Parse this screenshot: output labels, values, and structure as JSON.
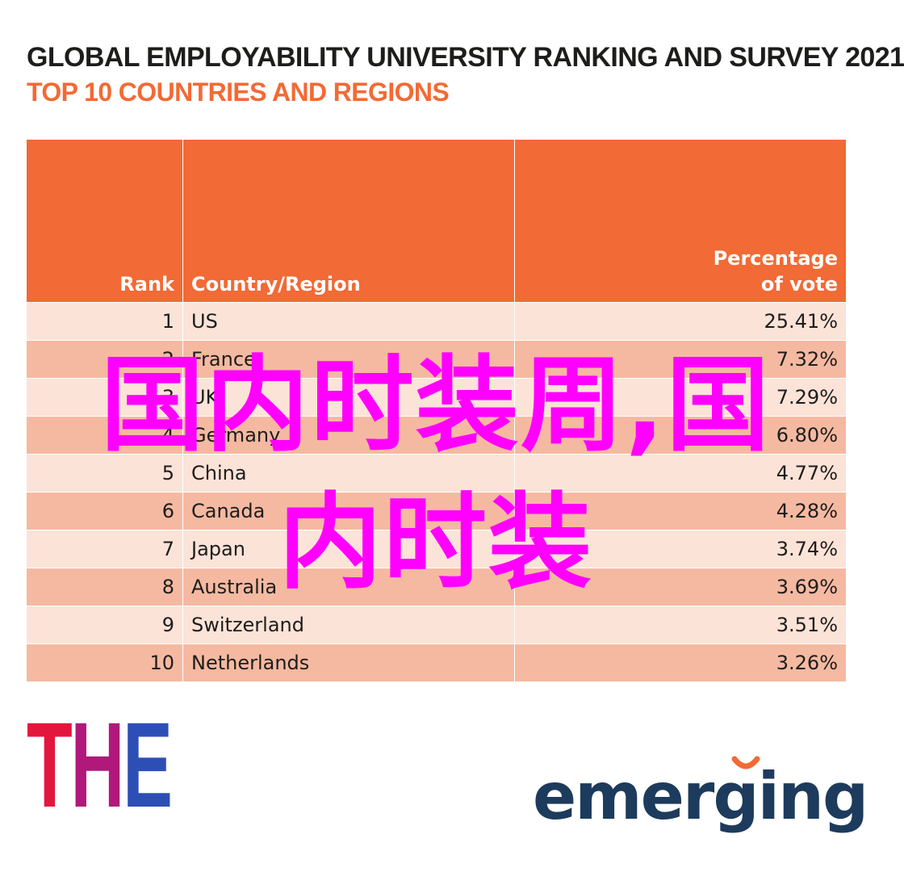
{
  "title": "GLOBAL EMPLOYABILITY UNIVERSITY RANKING AND SURVEY 2021",
  "subtitle": "TOP 10 COUNTRIES AND REGIONS",
  "overlay": {
    "line1": "国内时装周,国",
    "line2": "内时装",
    "color": "#ff00ff"
  },
  "colors": {
    "header": "#f26a35",
    "row_light": "#fbe3d8",
    "row_dark": "#f5b9a1",
    "the_t": "#e3173e",
    "the_h": "#b0197a",
    "the_e": "#2d4fb5",
    "emerging": "#1d3b5c",
    "emerging_accent": "#f26a35"
  },
  "chart_data": {
    "type": "table",
    "columns": [
      "Rank",
      "Country/Region",
      "Percentage of vote"
    ],
    "header_pct_line1": "Percentage",
    "header_pct_line2": "of vote",
    "rows": [
      {
        "rank": "1",
        "country": "US",
        "pct": "25.41%"
      },
      {
        "rank": "2",
        "country": "France",
        "pct": "7.32%"
      },
      {
        "rank": "3",
        "country": "UK",
        "pct": "7.29%"
      },
      {
        "rank": "4",
        "country": "Germany",
        "pct": "6.80%"
      },
      {
        "rank": "5",
        "country": "China",
        "pct": "4.77%"
      },
      {
        "rank": "6",
        "country": "Canada",
        "pct": "4.28%"
      },
      {
        "rank": "7",
        "country": "Japan",
        "pct": "3.74%"
      },
      {
        "rank": "8",
        "country": "Australia",
        "pct": "3.69%"
      },
      {
        "rank": "9",
        "country": "Switzerland",
        "pct": "3.51%"
      },
      {
        "rank": "10",
        "country": "Netherlands",
        "pct": "3.26%"
      }
    ]
  },
  "logos": {
    "the": [
      "T",
      "H",
      "E"
    ],
    "emerging": "emerging"
  }
}
